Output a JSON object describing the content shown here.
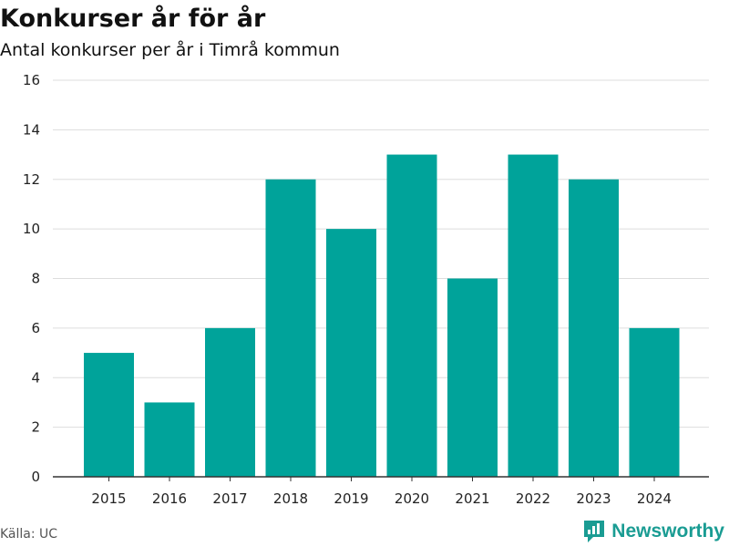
{
  "header": {
    "title": "Konkurser år för år",
    "subtitle": "Antal konkurser per år i Timrå kommun"
  },
  "footer": {
    "source": "Källa: UC",
    "brand": "Newsworthy",
    "brand_icon": "newsworthy-logo-icon"
  },
  "colors": {
    "bar": "#00a39a",
    "brand": "#1a9c93",
    "grid": "#dddddd",
    "axis": "#333333"
  },
  "chart_data": {
    "type": "bar",
    "title": "Konkurser år för år",
    "subtitle": "Antal konkurser per år i Timrå kommun",
    "categories": [
      "2015",
      "2016",
      "2017",
      "2018",
      "2019",
      "2020",
      "2021",
      "2022",
      "2023",
      "2024"
    ],
    "values": [
      5,
      3,
      6,
      12,
      10,
      13,
      8,
      13,
      12,
      6
    ],
    "ylim": [
      0,
      16
    ],
    "yticks": [
      0,
      2,
      4,
      6,
      8,
      10,
      12,
      14,
      16
    ],
    "grid": true,
    "legend": "none"
  }
}
